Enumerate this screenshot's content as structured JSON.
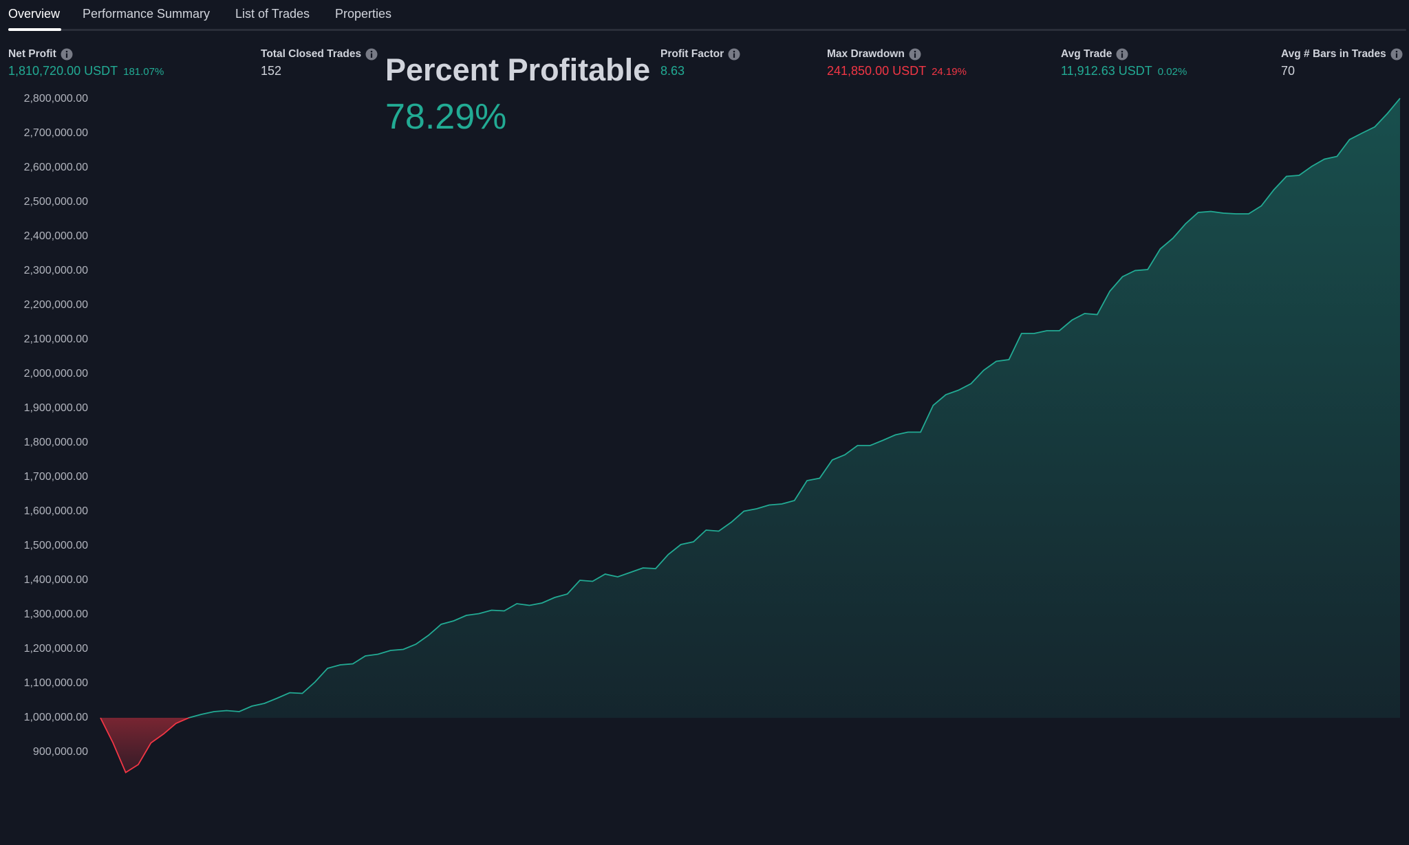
{
  "tabs": [
    "Overview",
    "Performance Summary",
    "List of Trades",
    "Properties"
  ],
  "metrics": [
    {
      "label": "Net Profit",
      "value": "1,810,720.00 USDT",
      "sub": "181.07%"
    },
    {
      "label": "Total Closed Trades",
      "value": "152"
    },
    {
      "label": "Profit Factor",
      "value": "8.63"
    },
    {
      "label": "Max Drawdown",
      "value": "241,850.00 USDT",
      "sub": "24.19%"
    },
    {
      "label": "Avg Trade",
      "value": "11,912.63 USDT",
      "sub": "0.02%"
    },
    {
      "label": "Avg # Bars in Trades",
      "value": "70"
    }
  ],
  "overlay": {
    "title": "Percent Profitable",
    "value": "78.29%"
  },
  "chart_data": {
    "type": "area",
    "values": [
      1000000,
      927000,
      841000,
      864000,
      927000,
      953000,
      984000,
      1000000,
      1010000,
      1018000,
      1021000,
      1018000,
      1034000,
      1042000,
      1057000,
      1073000,
      1071000,
      1104000,
      1144000,
      1154000,
      1157000,
      1180000,
      1185000,
      1196000,
      1199000,
      1214000,
      1240000,
      1272000,
      1282000,
      1298000,
      1303000,
      1313000,
      1311000,
      1332000,
      1327000,
      1334000,
      1350000,
      1360000,
      1400000,
      1397000,
      1418000,
      1410000,
      1423000,
      1436000,
      1434000,
      1475000,
      1504000,
      1512000,
      1546000,
      1543000,
      1569000,
      1601000,
      1608000,
      1619000,
      1622000,
      1632000,
      1690000,
      1697000,
      1750000,
      1765000,
      1792000,
      1792000,
      1807000,
      1823000,
      1831000,
      1831000,
      1909000,
      1940000,
      1953000,
      1972000,
      2011000,
      2037000,
      2042000,
      2118000,
      2118000,
      2126000,
      2126000,
      2157000,
      2176000,
      2173000,
      2241000,
      2283000,
      2301000,
      2304000,
      2364000,
      2395000,
      2437000,
      2470000,
      2473000,
      2468000,
      2466000,
      2466000,
      2489000,
      2536000,
      2575000,
      2578000,
      2604000,
      2625000,
      2633000,
      2682000,
      2701000,
      2719000,
      2758000,
      2802000
    ],
    "baseline": 1000000,
    "color": "#22ab94",
    "negative_color": "#f23645",
    "ylim": [
      630000,
      2850000
    ],
    "yticks": [
      {
        "value": 900000,
        "label": "900,000.00"
      },
      {
        "value": 1000000,
        "label": "1,000,000.00"
      },
      {
        "value": 1100000,
        "label": "1,100,000.00"
      },
      {
        "value": 1200000,
        "label": "1,200,000.00"
      },
      {
        "value": 1300000,
        "label": "1,300,000.00"
      },
      {
        "value": 1400000,
        "label": "1,400,000.00"
      },
      {
        "value": 1500000,
        "label": "1,500,000.00"
      },
      {
        "value": 1600000,
        "label": "1,600,000.00"
      },
      {
        "value": 1700000,
        "label": "1,700,000.00"
      },
      {
        "value": 1800000,
        "label": "1,800,000.00"
      },
      {
        "value": 1900000,
        "label": "1,900,000.00"
      },
      {
        "value": 2000000,
        "label": "2,000,000.00"
      },
      {
        "value": 2100000,
        "label": "2,100,000.00"
      },
      {
        "value": 2200000,
        "label": "2,200,000.00"
      },
      {
        "value": 2300000,
        "label": "2,300,000.00"
      },
      {
        "value": 2400000,
        "label": "2,400,000.00"
      },
      {
        "value": 2500000,
        "label": "2,500,000.00"
      },
      {
        "value": 2600000,
        "label": "2,600,000.00"
      },
      {
        "value": 2700000,
        "label": "2,700,000.00"
      },
      {
        "value": 2800000,
        "label": "2,800,000.00"
      }
    ]
  }
}
